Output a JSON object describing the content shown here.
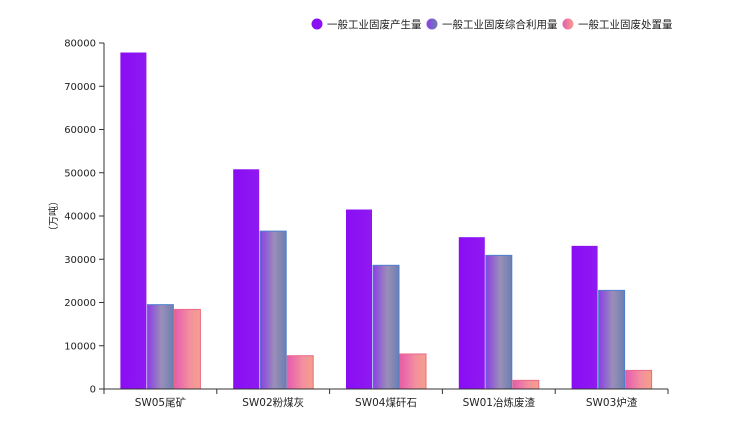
{
  "chart_data": {
    "type": "bar",
    "categories": [
      "SW05尾矿",
      "SW02粉煤灰",
      "SW04煤矸石",
      "SW01冶炼废渣",
      "SW03炉渣"
    ],
    "series": [
      {
        "name": "一般工业固废产生量",
        "values": [
          77800,
          50800,
          41500,
          35100,
          33100
        ],
        "color": "#8a10f2"
      },
      {
        "name": "一般工业固废综合利用量",
        "values": [
          19500,
          36500,
          28600,
          30900,
          22800
        ],
        "color": "#7b6fd8"
      },
      {
        "name": "一般工业固废处置量",
        "values": [
          18400,
          7700,
          8100,
          2000,
          4300
        ],
        "color": "#f06aa8"
      }
    ],
    "ylabel": "（万吨）",
    "ylim": [
      0,
      80000
    ],
    "yticks": [
      "0",
      "10000",
      "20000",
      "30000",
      "40000",
      "50000",
      "60000",
      "70000",
      "80000"
    ],
    "legend_position": "top-right",
    "grid": false
  }
}
